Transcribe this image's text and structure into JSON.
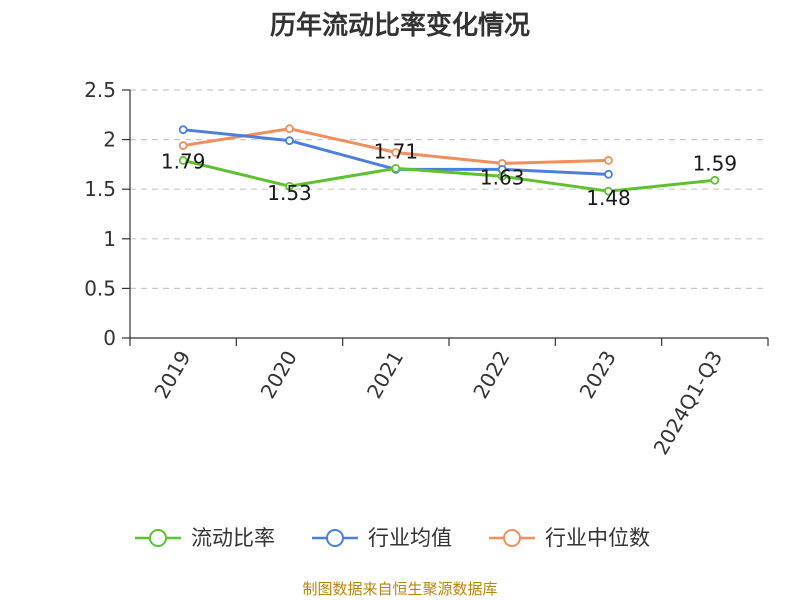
{
  "chart_data": {
    "type": "line",
    "title": "历年流动比率变化情况",
    "categories": [
      "2019",
      "2020",
      "2021",
      "2022",
      "2023",
      "2024Q1-Q3"
    ],
    "ylim": [
      0,
      2.5
    ],
    "y_ticks": [
      "0",
      "0.5",
      "1",
      "1.5",
      "2",
      "2.5"
    ],
    "grid": true,
    "legend_position": "bottom",
    "series": [
      {
        "name": "流动比率",
        "color": "#5ec22e",
        "values": [
          1.79,
          1.53,
          1.71,
          1.63,
          1.48,
          1.59
        ],
        "labels": [
          "1.79",
          "1.53",
          "1.71",
          "1.63",
          "1.48",
          "1.59"
        ]
      },
      {
        "name": "行业均值",
        "color": "#4a7fdc",
        "values": [
          2.1,
          1.99,
          1.7,
          1.7,
          1.65,
          null
        ]
      },
      {
        "name": "行业中位数",
        "color": "#f28e5c",
        "values": [
          1.94,
          2.11,
          1.87,
          1.76,
          1.79,
          null
        ]
      }
    ]
  },
  "footer": {
    "source": "制图数据来自恒生聚源数据库"
  }
}
